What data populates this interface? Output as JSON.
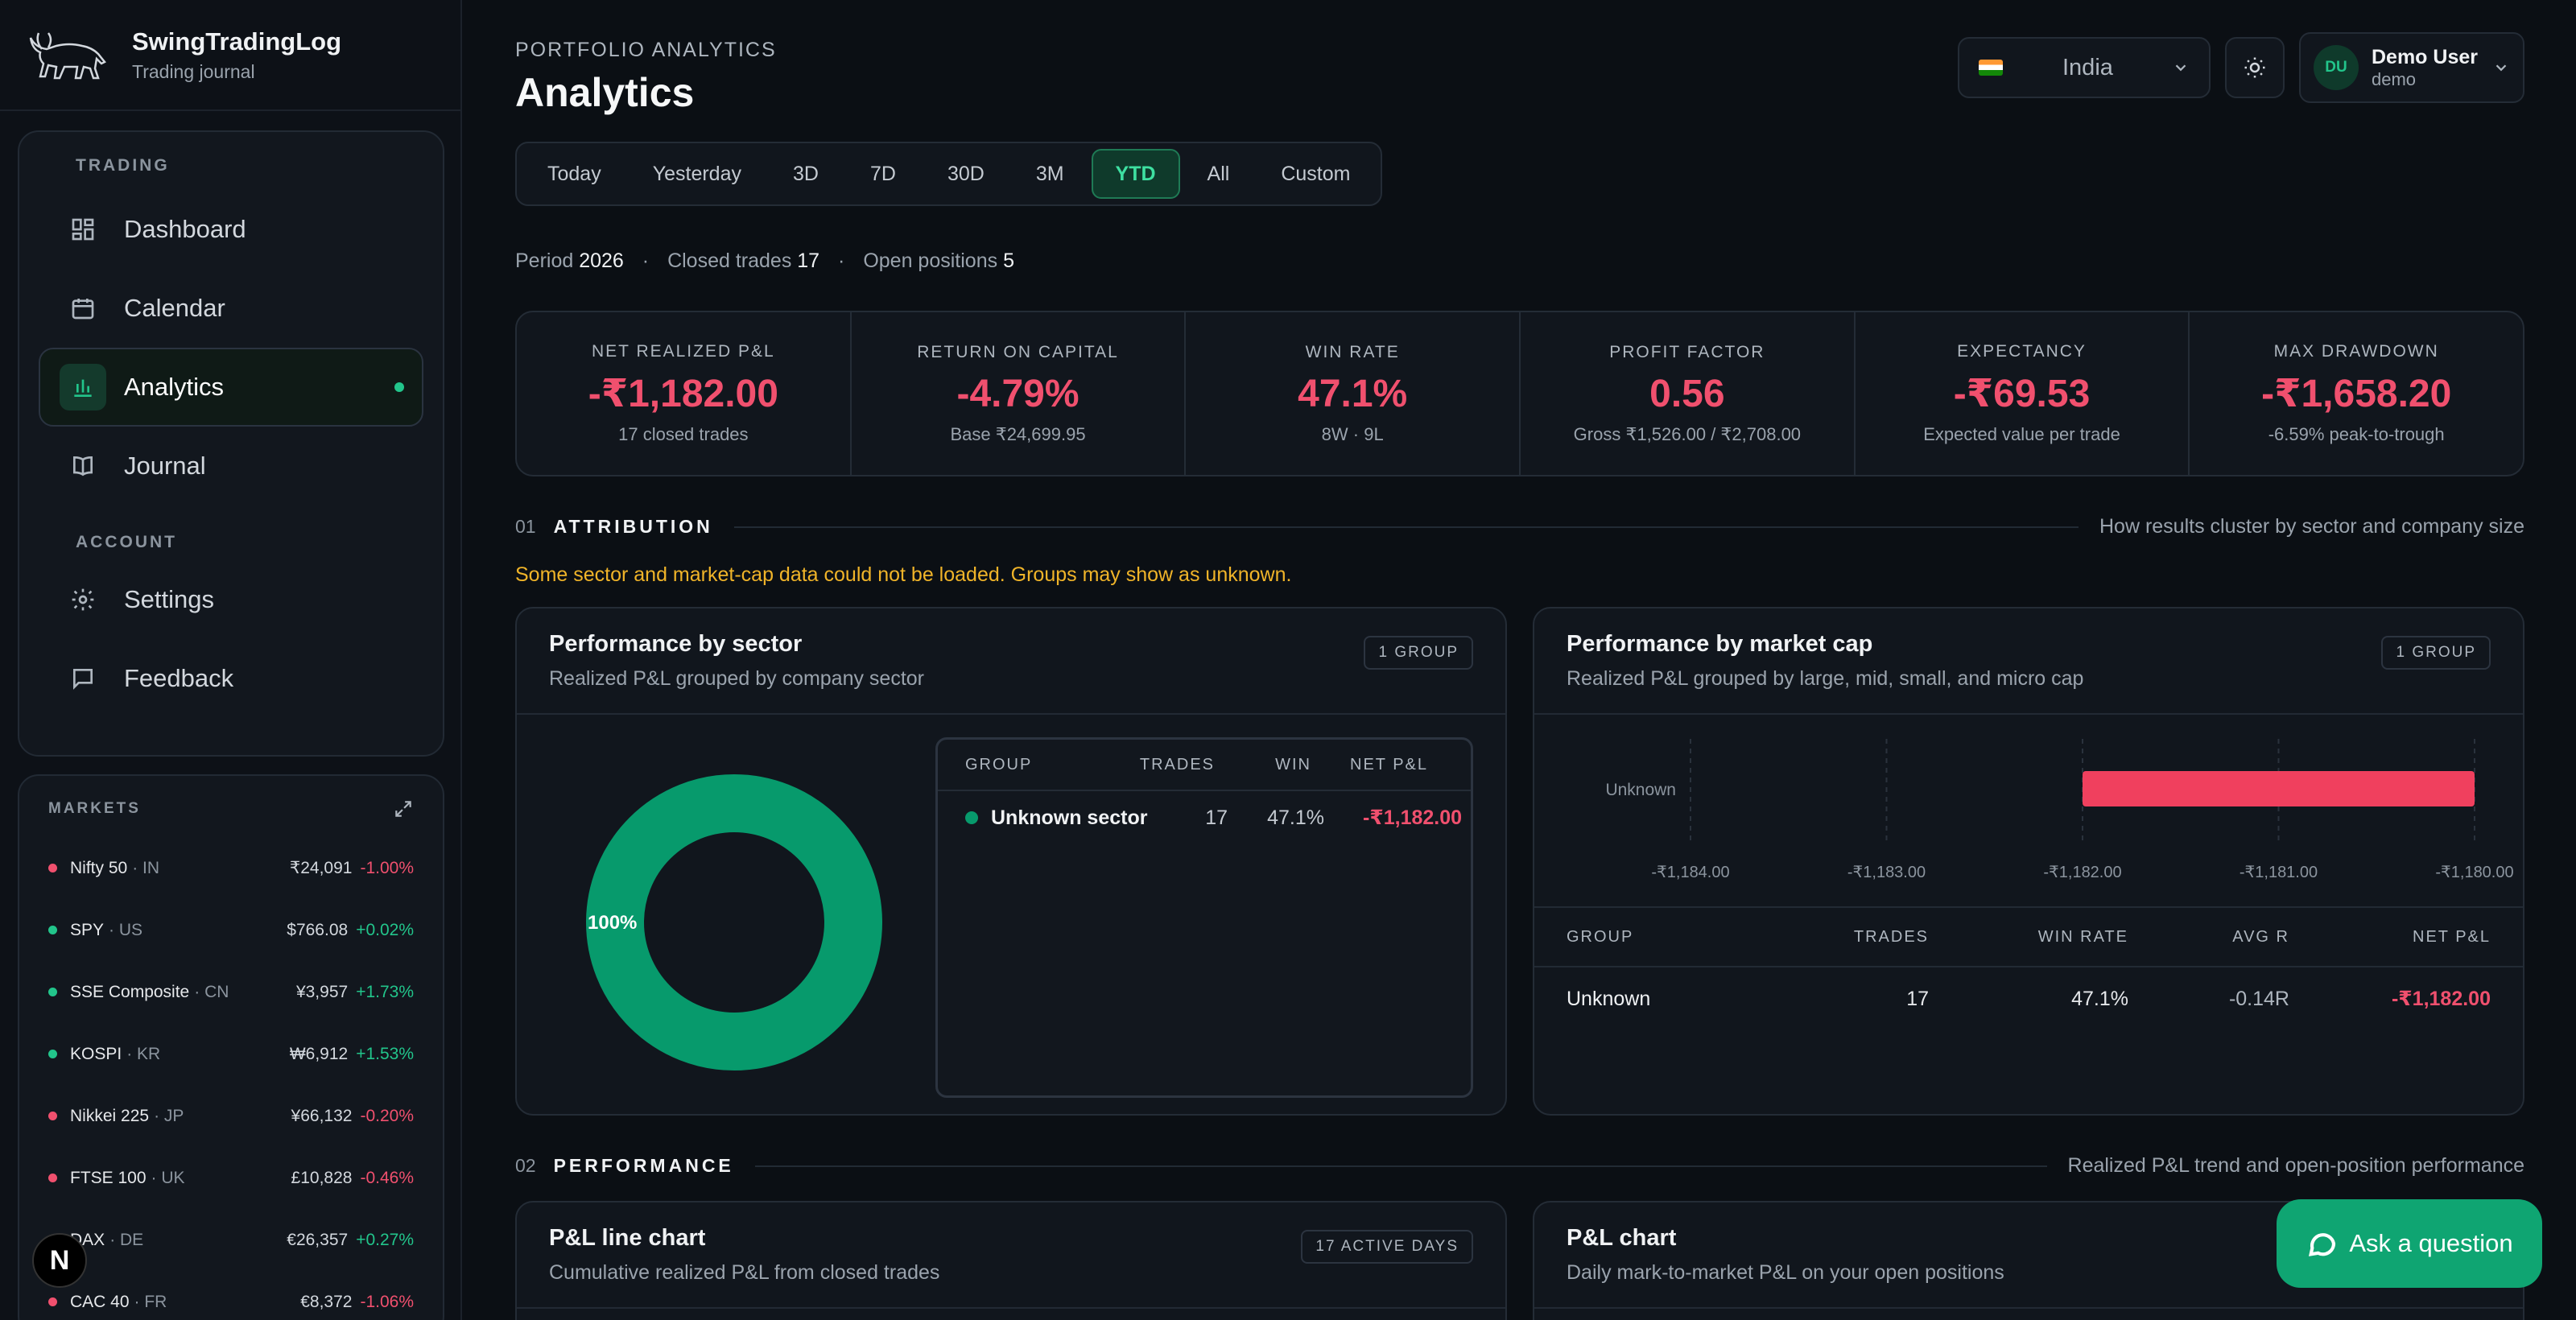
{
  "brand": {
    "name": "SwingTradingLog",
    "subtitle": "Trading journal"
  },
  "nav": {
    "trading_label": "TRADING",
    "account_label": "ACCOUNT",
    "items": [
      {
        "label": "Dashboard",
        "icon": "dashboard-icon"
      },
      {
        "label": "Calendar",
        "icon": "calendar-icon"
      },
      {
        "label": "Analytics",
        "icon": "bar-chart-icon",
        "active": true
      },
      {
        "label": "Journal",
        "icon": "book-icon"
      },
      {
        "label": "Settings",
        "icon": "gear-icon"
      },
      {
        "label": "Feedback",
        "icon": "message-icon"
      }
    ]
  },
  "markets": {
    "title": "MARKETS",
    "rows": [
      {
        "name": "Nifty 50",
        "country": "IN",
        "price": "₹24,091",
        "change": "-1.00%",
        "up": false
      },
      {
        "name": "SPY",
        "country": "US",
        "price": "$766.08",
        "change": "+0.02%",
        "up": true
      },
      {
        "name": "SSE Composite",
        "country": "CN",
        "price": "¥3,957",
        "change": "+1.73%",
        "up": true
      },
      {
        "name": "KOSPI",
        "country": "KR",
        "price": "₩6,912",
        "change": "+1.53%",
        "up": true
      },
      {
        "name": "Nikkei 225",
        "country": "JP",
        "price": "¥66,132",
        "change": "-0.20%",
        "up": false
      },
      {
        "name": "FTSE 100",
        "country": "UK",
        "price": "£10,828",
        "change": "-0.46%",
        "up": false
      },
      {
        "name": "DAX",
        "country": "DE",
        "price": "€26,357",
        "change": "+0.27%",
        "up": true
      },
      {
        "name": "CAC 40",
        "country": "FR",
        "price": "€8,372",
        "change": "-1.06%",
        "up": false
      }
    ]
  },
  "header": {
    "eyebrow": "PORTFOLIO ANALYTICS",
    "title": "Analytics",
    "country": "India",
    "user_initials": "DU",
    "user_name": "Demo User",
    "user_handle": "demo"
  },
  "ranges": [
    "Today",
    "Yesterday",
    "3D",
    "7D",
    "30D",
    "3M",
    "YTD",
    "All",
    "Custom"
  ],
  "active_range": "YTD",
  "period": {
    "period_label": "Period",
    "period_value": "2026",
    "closed_label": "Closed trades",
    "closed_value": "17",
    "open_label": "Open positions",
    "open_value": "5"
  },
  "kpis": [
    {
      "label": "NET REALIZED P&L",
      "value": "-₹1,182.00",
      "sub": "17 closed trades"
    },
    {
      "label": "RETURN ON CAPITAL",
      "value": "-4.79%",
      "sub": "Base ₹24,699.95"
    },
    {
      "label": "WIN RATE",
      "value": "47.1%",
      "sub": "8W · 9L"
    },
    {
      "label": "PROFIT FACTOR",
      "value": "0.56",
      "sub": "Gross ₹1,526.00 / ₹2,708.00"
    },
    {
      "label": "EXPECTANCY",
      "value": "-₹69.53",
      "sub": "Expected value per trade"
    },
    {
      "label": "MAX DRAWDOWN",
      "value": "-₹1,658.20",
      "sub": "-6.59% peak-to-trough"
    }
  ],
  "attribution": {
    "num": "01",
    "name": "ATTRIBUTION",
    "desc": "How results cluster by sector and company size",
    "warning": "Some sector and market-cap data could not be loaded. Groups may show as unknown."
  },
  "sector_card": {
    "title": "Performance by sector",
    "subtitle": "Realized P&L grouped by company sector",
    "pill": "1 GROUP",
    "donut_label": "100%",
    "cols": [
      "GROUP",
      "TRADES",
      "WIN",
      "NET P&L"
    ],
    "row": {
      "group": "Unknown sector",
      "trades": "17",
      "win": "47.1%",
      "net": "-₹1,182.00"
    }
  },
  "mcap_card": {
    "title": "Performance by market cap",
    "subtitle": "Realized P&L grouped by large, mid, small, and micro cap",
    "pill": "1 GROUP",
    "cols": [
      "GROUP",
      "TRADES",
      "WIN RATE",
      "AVG R",
      "NET P&L"
    ],
    "row": {
      "group": "Unknown",
      "trades": "17",
      "win": "47.1%",
      "avg_r": "-0.14R",
      "net": "-₹1,182.00"
    }
  },
  "chart_data": [
    {
      "type": "pie",
      "categories": [
        "Unknown sector"
      ],
      "values": [
        100
      ],
      "labels": [
        "100%"
      ],
      "colors": [
        "#079a6c"
      ]
    },
    {
      "type": "bar",
      "orientation": "horizontal",
      "categories": [
        "Unknown"
      ],
      "values": [
        -1182.0
      ],
      "xlim": [
        -1184.0,
        -1180.0
      ],
      "xticks": [
        "-₹1,184.00",
        "-₹1,183.00",
        "-₹1,182.00",
        "-₹1,181.00",
        "-₹1,180.00"
      ],
      "colors": [
        "#f0405e"
      ]
    }
  ],
  "performance": {
    "num": "02",
    "name": "PERFORMANCE",
    "desc": "Realized P&L trend and open-position performance"
  },
  "pnl_line_card": {
    "title": "P&L line chart",
    "subtitle": "Cumulative realized P&L from closed trades",
    "pill": "17 ACTIVE DAYS"
  },
  "pnl_card": {
    "title": "P&L chart",
    "subtitle": "Daily mark-to-market P&L on your open positions"
  },
  "ask": {
    "label": "Ask a question"
  },
  "colors": {
    "accent": "#22c58b",
    "negative": "#f0506e",
    "warning": "#f0b429"
  }
}
